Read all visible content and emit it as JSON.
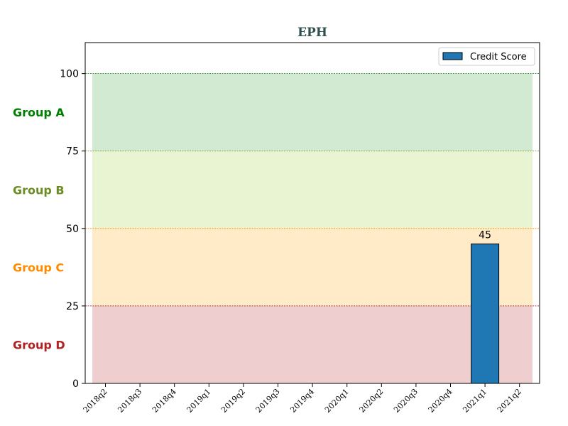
{
  "chart_data": {
    "type": "bar",
    "title": "EPH",
    "title_color": "#2f4f4f",
    "categories": [
      "2018q2",
      "2018q3",
      "2018q4",
      "2019q1",
      "2019q2",
      "2019q3",
      "2019q4",
      "2020q1",
      "2020q2",
      "2020q3",
      "2020q4",
      "2021q1",
      "2021q2"
    ],
    "series": [
      {
        "name": "Credit Score",
        "values": [
          null,
          null,
          null,
          null,
          null,
          null,
          null,
          null,
          null,
          null,
          null,
          45,
          null
        ],
        "color": "#1f77b4"
      }
    ],
    "data_labels": [
      null,
      null,
      null,
      null,
      null,
      null,
      null,
      null,
      null,
      null,
      null,
      "45",
      null
    ],
    "ylim": [
      0,
      110
    ],
    "yticks": [
      0,
      25,
      50,
      75,
      100
    ],
    "legend_position": "top-right",
    "bands": [
      {
        "label": "Group A",
        "from": 75,
        "to": 100,
        "fill": "#2ca02c",
        "label_color": "#008000",
        "line_color": "#008000"
      },
      {
        "label": "Group B",
        "from": 50,
        "to": 75,
        "fill": "#9acd32",
        "label_color": "#6b8e23",
        "line_color": "#6b8e23"
      },
      {
        "label": "Group C",
        "from": 25,
        "to": 50,
        "fill": "#ffa500",
        "label_color": "#ff8c00",
        "line_color": "#ff8c00"
      },
      {
        "label": "Group D",
        "from": 0,
        "to": 25,
        "fill": "#b22222",
        "label_color": "#b22222",
        "line_color": "#8b0000"
      }
    ]
  }
}
